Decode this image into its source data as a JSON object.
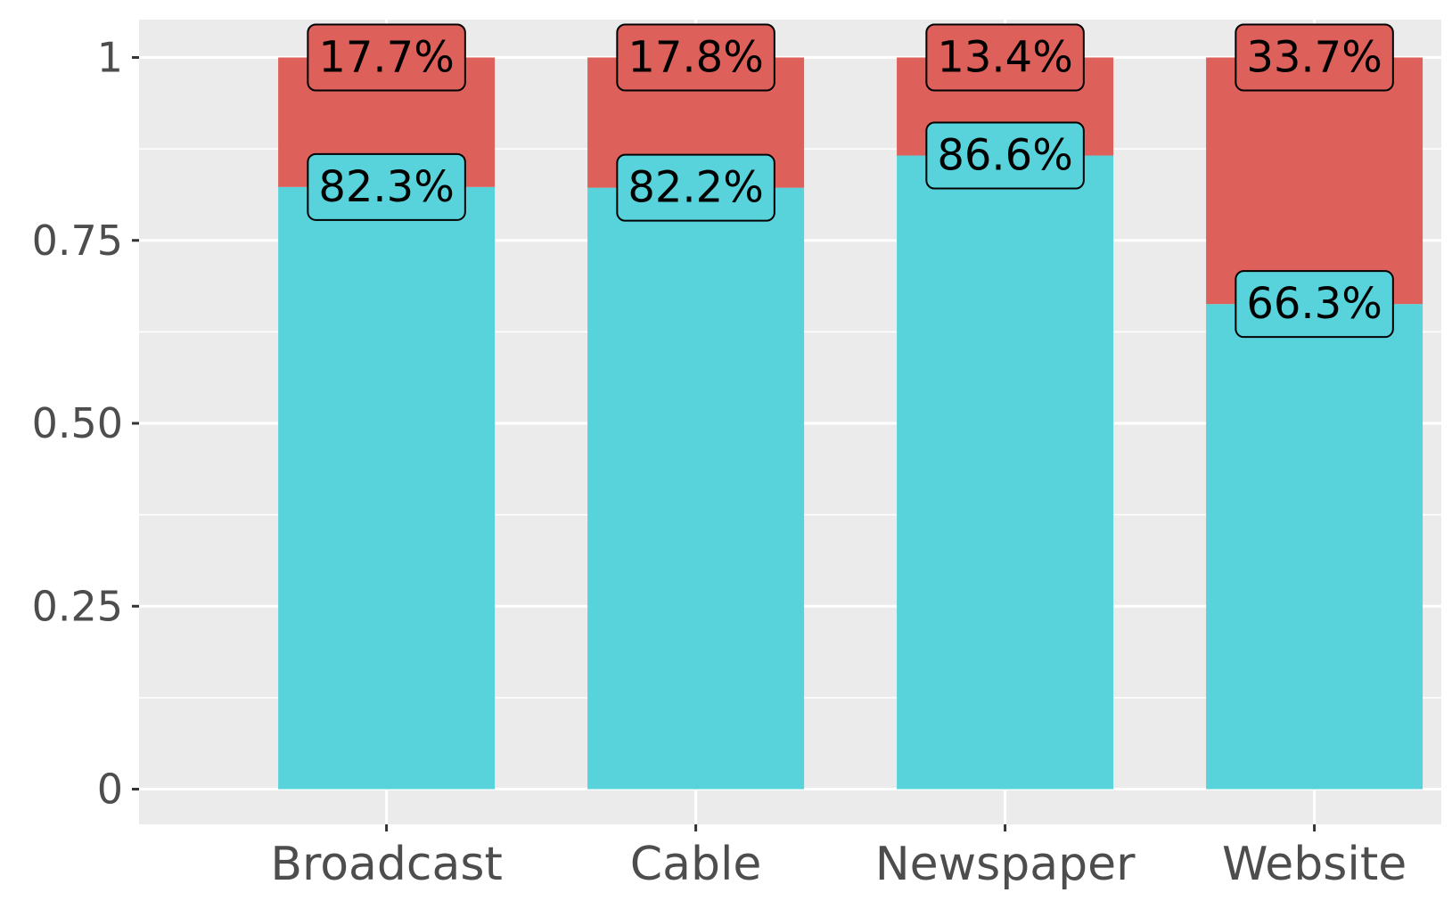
{
  "chart_data": {
    "type": "bar",
    "stacked": true,
    "categories": [
      "Broadcast",
      "Cable",
      "Newspaper",
      "Website"
    ],
    "series": [
      {
        "values": [
          0.823,
          0.822,
          0.866,
          0.663
        ],
        "labels": [
          "82.3%",
          "82.2%",
          "86.6%",
          "66.3%"
        ],
        "color": "#59d3db"
      },
      {
        "values": [
          0.177,
          0.178,
          0.134,
          0.337
        ],
        "labels": [
          "17.7%",
          "17.8%",
          "13.4%",
          "33.7%"
        ],
        "color": "#dd615a"
      }
    ],
    "y_ticks": [
      0,
      0.25,
      0.5,
      0.75,
      1
    ],
    "y_tick_labels": [
      "0",
      "0.25",
      "0.50",
      "0.75",
      "1"
    ],
    "ylim": [
      -0.05,
      1.05
    ],
    "title": "",
    "xlabel": "",
    "ylabel": "",
    "grid": true,
    "legend": "none",
    "panel_background": "#ebebeb",
    "grid_color": "#ffffff"
  }
}
